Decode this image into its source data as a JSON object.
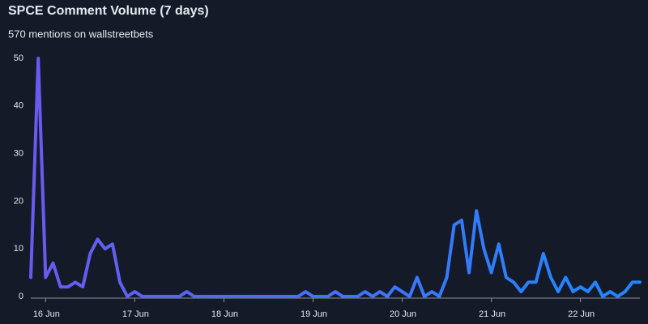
{
  "chart_data": {
    "type": "line",
    "title": "SPCE Comment Volume (7 days)",
    "subtitle": "570 mentions on wallstreetbets",
    "categories": [
      null,
      null,
      "16 Jun",
      null,
      null,
      null,
      null,
      null,
      null,
      null,
      null,
      null,
      null,
      null,
      "17 Jun",
      null,
      null,
      null,
      null,
      null,
      null,
      null,
      null,
      null,
      null,
      null,
      "18 Jun",
      null,
      null,
      null,
      null,
      null,
      null,
      null,
      null,
      null,
      null,
      null,
      "19 Jun",
      null,
      null,
      null,
      null,
      null,
      null,
      null,
      null,
      null,
      null,
      null,
      "20 Jun",
      null,
      null,
      null,
      null,
      null,
      null,
      null,
      null,
      null,
      null,
      null,
      "21 Jun",
      null,
      null,
      null,
      null,
      null,
      null,
      null,
      null,
      null,
      null,
      null,
      "22 Jun",
      null,
      null,
      null,
      null,
      null,
      null,
      null,
      null
    ],
    "values": [
      4,
      50,
      4,
      7,
      2,
      2,
      3,
      2,
      9,
      12,
      10,
      11,
      3,
      0,
      1,
      0,
      0,
      0,
      0,
      0,
      0,
      1,
      0,
      0,
      0,
      0,
      0,
      0,
      0,
      0,
      0,
      0,
      0,
      0,
      0,
      0,
      0,
      1,
      0,
      0,
      0,
      1,
      0,
      0,
      0,
      1,
      0,
      1,
      0,
      2,
      1,
      0,
      4,
      0,
      1,
      0,
      4,
      15,
      16,
      5,
      18,
      10,
      5,
      11,
      4,
      3,
      1,
      3,
      3,
      9,
      4,
      1,
      4,
      1,
      2,
      1,
      3,
      0,
      1,
      0,
      1,
      3,
      3
    ],
    "colors": [
      "#6a5af0",
      "#1e88ff"
    ],
    "ylim": [
      0,
      50
    ],
    "yticks": [
      0,
      10,
      20,
      30,
      40,
      50
    ]
  }
}
